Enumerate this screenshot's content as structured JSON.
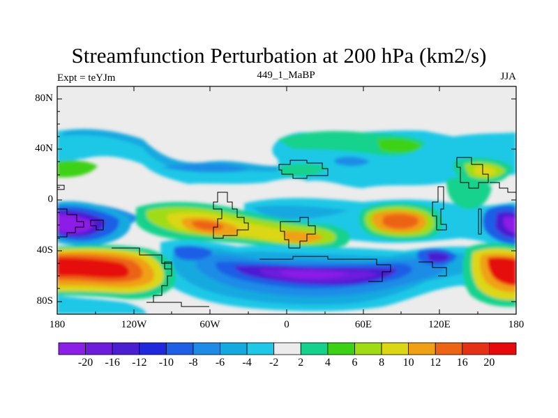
{
  "title": "Streamfunction Perturbation at 200 hPa (km2/s)",
  "left_subtitle": "Expt = teYJm",
  "center_subtitle": "449_1_MaBP",
  "right_subtitle": "JJA",
  "lat_ticks": [
    "80N",
    "40N",
    "0",
    "40S",
    "80S"
  ],
  "lon_ticks": [
    "180",
    "120W",
    "60W",
    "0",
    "60E",
    "120E",
    "180"
  ],
  "colorbar": {
    "labels": [
      "-20",
      "-16",
      "-12",
      "-10",
      "-8",
      "-6",
      "-4",
      "-2",
      "2",
      "4",
      "6",
      "8",
      "10",
      "12",
      "16",
      "20"
    ],
    "colors": [
      "#8c1fe6",
      "#6e1cdc",
      "#4a1fd2",
      "#1f28dc",
      "#1e5fe6",
      "#1e8ce6",
      "#14a9e0",
      "#1ec8e6",
      "#ececec",
      "#14d28c",
      "#3cd214",
      "#a0dc14",
      "#dcd714",
      "#f0a014",
      "#ec6414",
      "#e63214",
      "#e60a0a"
    ]
  }
}
